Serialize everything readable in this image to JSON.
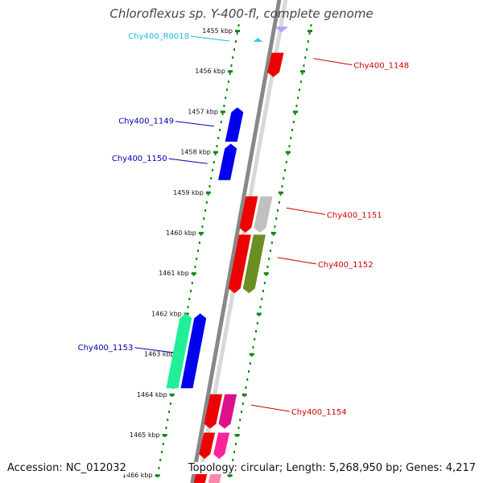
{
  "title": "Chloroflexus sp. Y-400-fl, complete genome",
  "footer": {
    "accession": "Accession: NC_012032",
    "summary": "Topology: circular; Length: 5,268,950 bp; Genes: 4,217"
  },
  "colors": {
    "forward_strand": "#ff0000",
    "reverse_strand": "#0000ff",
    "rna": "#33ccee",
    "backbone": "#888888",
    "tick": "#118811"
  },
  "ruler": [
    {
      "pos_kbp": 1455,
      "label": "1455 kbp"
    },
    {
      "pos_kbp": 1456,
      "label": "1456 kbp"
    },
    {
      "pos_kbp": 1457,
      "label": "1457 kbp"
    },
    {
      "pos_kbp": 1458,
      "label": "1458 kbp"
    },
    {
      "pos_kbp": 1459,
      "label": "1459 kbp"
    },
    {
      "pos_kbp": 1460,
      "label": "1460 kbp"
    },
    {
      "pos_kbp": 1461,
      "label": "1461 kbp"
    },
    {
      "pos_kbp": 1462,
      "label": "1462 kbp"
    },
    {
      "pos_kbp": 1463,
      "label": "1463 kbp"
    },
    {
      "pos_kbp": 1464,
      "label": "1464 kbp"
    },
    {
      "pos_kbp": 1465,
      "label": "1465 kbp"
    },
    {
      "pos_kbp": 1466,
      "label": "1466 kbp"
    }
  ],
  "genes": [
    {
      "id": "Chy400_R0018",
      "start_kbp": 1455.18,
      "end_kbp": 1455.28,
      "strand": "reverse",
      "color": "#33ccee",
      "label_color": "#22bbdd",
      "label_side": "left",
      "kind": "rna"
    },
    {
      "id": "Chy400_1148",
      "start_kbp": 1455.55,
      "end_kbp": 1456.15,
      "strand": "forward",
      "color": "#ee0000",
      "label_color": "#cc0000",
      "label_side": "right"
    },
    {
      "id": "Chy400_1149",
      "start_kbp": 1456.9,
      "end_kbp": 1457.75,
      "strand": "reverse",
      "color": "#0000ee",
      "label_color": "#0000aa",
      "label_side": "left"
    },
    {
      "id": "Chy400_1150",
      "start_kbp": 1457.8,
      "end_kbp": 1458.7,
      "strand": "reverse",
      "color": "#0000ee",
      "label_color": "#0000aa",
      "label_side": "left"
    },
    {
      "id": "Chy400_1151",
      "start_kbp": 1459.1,
      "end_kbp": 1460.0,
      "strand": "forward",
      "color": "#ee0000",
      "accent": "#c0c0c0",
      "label_color": "#cc0000",
      "label_side": "right"
    },
    {
      "id": "Chy400_1152",
      "start_kbp": 1460.05,
      "end_kbp": 1461.5,
      "strand": "forward",
      "color": "#ee0000",
      "accent": "#6b8e23",
      "label_color": "#cc0000",
      "label_side": "right"
    },
    {
      "id": "Chy400_1153",
      "start_kbp": 1462.0,
      "end_kbp": 1463.85,
      "strand": "reverse",
      "color": "#0000ee",
      "accent": "#22ee99",
      "label_color": "#0000aa",
      "label_side": "left"
    },
    {
      "id": "Chy400_1154",
      "start_kbp": 1464.0,
      "end_kbp": 1464.85,
      "strand": "forward",
      "color": "#ee0000",
      "accent": "#dd1188",
      "label_color": "#cc0000",
      "label_side": "right"
    }
  ],
  "unlabeled_features": [
    {
      "start_kbp": 1454.9,
      "end_kbp": 1455.05,
      "color": "#aaaaff"
    },
    {
      "start_kbp": 1464.95,
      "end_kbp": 1465.6,
      "color": "#ee0000",
      "accent": "#ff2299"
    },
    {
      "start_kbp": 1465.7,
      "end_kbp": 1466.3,
      "color": "#ee0000",
      "accent": "#ff88aa"
    }
  ]
}
